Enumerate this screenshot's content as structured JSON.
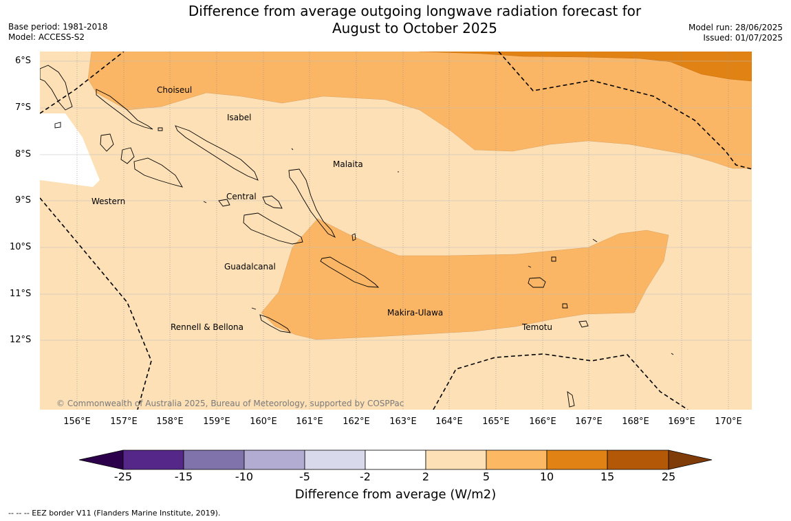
{
  "header": {
    "title_line1": "Difference from average outgoing longwave radiation forecast for",
    "title_line2": "August to October 2025",
    "base_period": "Base period: 1981-2018",
    "model": "Model: ACCESS-S2",
    "model_run": "Model run: 28/06/2025",
    "issued": "Issued: 01/07/2025"
  },
  "map": {
    "lat_labels": [
      "6°S",
      "7°S",
      "8°S",
      "9°S",
      "10°S",
      "11°S",
      "12°S"
    ],
    "lon_labels": [
      "156°E",
      "157°E",
      "158°E",
      "159°E",
      "160°E",
      "161°E",
      "162°E",
      "163°E",
      "164°E",
      "165°E",
      "166°E",
      "167°E",
      "168°E",
      "169°E",
      "170°E"
    ],
    "regions": [
      "Choiseul",
      "Isabel",
      "Malaita",
      "Western",
      "Central",
      "Guadalcanal",
      "Makira-Ulawa",
      "Rennell & Bellona",
      "Temotu"
    ],
    "copyright": "© Commonwealth of Australia 2025, Bureau of Meteorology, supported by COSPPac",
    "colors": {
      "band_2_5": "#fde0b6",
      "band_5_10": "#fbb665",
      "band_10_15": "#e08214",
      "no_change": "#ffffff"
    }
  },
  "legend": {
    "ticks": [
      "-25",
      "-15",
      "-10",
      "-5",
      "-2",
      "2",
      "5",
      "10",
      "15",
      "25"
    ],
    "colors": [
      "#2d004b",
      "#542788",
      "#8073ac",
      "#b2abd2",
      "#d8daeb",
      "#ffffff",
      "#fee0b6",
      "#fdb863",
      "#e08214",
      "#b35806",
      "#7f3b08"
    ],
    "label": "Difference from average (W/m2)"
  },
  "footer": {
    "eez_note": "--  --  -- EEZ border V11 (Flanders Marine Institute, 2019)."
  }
}
